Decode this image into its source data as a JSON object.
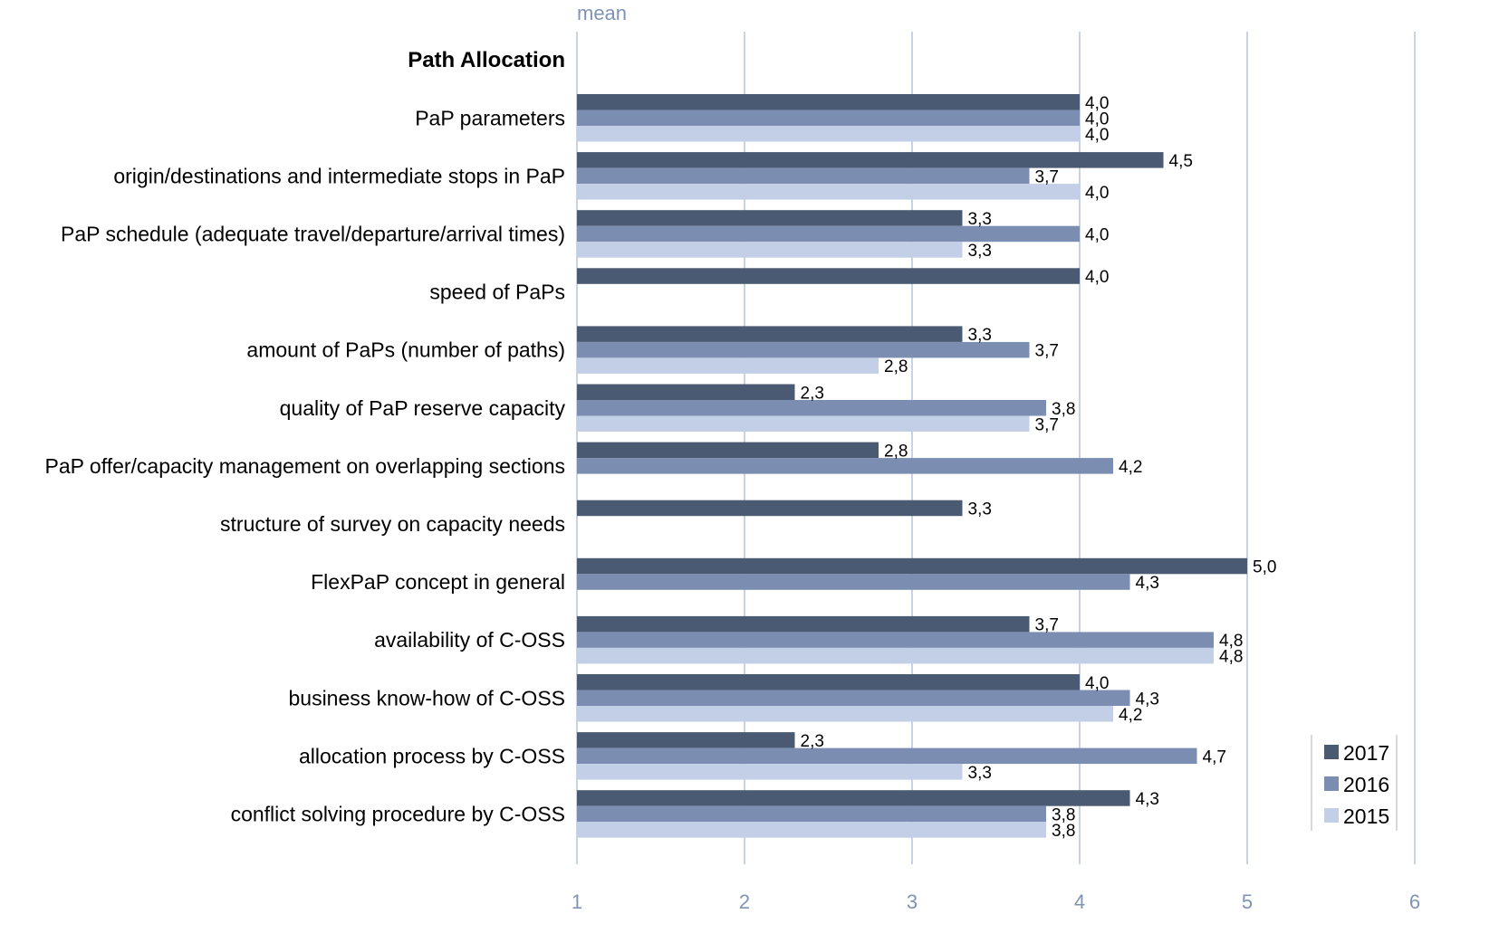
{
  "chart_data": {
    "type": "bar",
    "orientation": "horizontal",
    "ylabel": "mean",
    "xlim": [
      1,
      6
    ],
    "ticks": [
      "1",
      "2",
      "3",
      "4",
      "5",
      "6"
    ],
    "grid": true,
    "section_title": "Path Allocation",
    "categories": [
      "PaP parameters",
      "origin/destinations and intermediate stops in PaP",
      "PaP schedule (adequate travel/departure/arrival times)",
      "speed of PaPs",
      "amount of PaPs (number of paths)",
      "quality of PaP reserve capacity",
      "PaP offer/capacity management on overlapping sections",
      "structure of survey on capacity needs",
      "FlexPaP concept in general",
      "availability of C-OSS",
      "business know-how of C-OSS",
      "allocation process by C-OSS",
      "conflict solving procedure by C-OSS"
    ],
    "series": [
      {
        "name": "2017",
        "color": "#4a5a72",
        "values": [
          4.0,
          4.5,
          3.3,
          4.0,
          3.3,
          2.3,
          2.8,
          3.3,
          5.0,
          3.7,
          4.0,
          2.3,
          4.3
        ],
        "labels": [
          "4,0",
          "4,5",
          "3,3",
          "4,0",
          "3,3",
          "2,3",
          "2,8",
          "3,3",
          "5,0",
          "3,7",
          "4,0",
          "2,3",
          "4,3"
        ]
      },
      {
        "name": "2016",
        "color": "#7b8db0",
        "values": [
          4.0,
          3.7,
          4.0,
          null,
          3.7,
          3.8,
          4.2,
          null,
          4.3,
          4.8,
          4.3,
          4.7,
          3.8
        ],
        "labels": [
          "4,0",
          "3,7",
          "4,0",
          "",
          "3,7",
          "3,8",
          "4,2",
          "",
          "4,3",
          "4,8",
          "4,3",
          "4,7",
          "3,8"
        ]
      },
      {
        "name": "2015",
        "color": "#c3cfe6",
        "values": [
          4.0,
          4.0,
          3.3,
          null,
          2.8,
          3.7,
          null,
          null,
          null,
          4.8,
          4.2,
          3.3,
          3.8
        ],
        "labels": [
          "4,0",
          "4,0",
          "3,3",
          "",
          "2,8",
          "3,7",
          "",
          "",
          "",
          "4,8",
          "4,2",
          "3,3",
          "3,8"
        ]
      }
    ],
    "legend_position": "bottom-right"
  }
}
